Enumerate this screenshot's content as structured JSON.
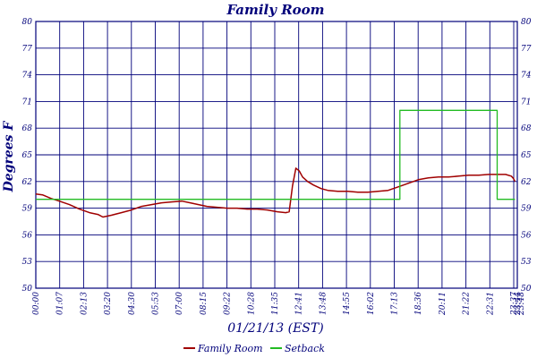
{
  "chart_data": {
    "type": "line",
    "title": "Family Room",
    "xlabel": "01/21/13 (EST)",
    "ylabel": "Degrees F",
    "ylim": [
      50,
      80
    ],
    "xlim": [
      "00:00",
      "23:55"
    ],
    "yticks": [
      50,
      53,
      56,
      59,
      62,
      65,
      68,
      71,
      74,
      77,
      80
    ],
    "xticks": [
      "00:00",
      "01:07",
      "02:13",
      "03:20",
      "04:30",
      "05:53",
      "07:00",
      "08:15",
      "09:22",
      "10:28",
      "11:35",
      "12:41",
      "13:48",
      "14:55",
      "16:02",
      "17:13",
      "18:36",
      "20:11",
      "21:22",
      "22:31",
      "23:37",
      "23:44",
      "23:48"
    ],
    "grid": true,
    "legend_position": "bottom",
    "colors": {
      "axis": "#00007a",
      "grid": "#00007a",
      "family_room": "#a00000",
      "setback": "#22bb22"
    },
    "series": [
      {
        "name": "Family Room",
        "x": [
          "00:00",
          "00:20",
          "00:45",
          "01:10",
          "01:40",
          "02:10",
          "02:40",
          "03:05",
          "03:20",
          "03:45",
          "04:15",
          "04:45",
          "05:15",
          "05:45",
          "06:15",
          "06:45",
          "07:15",
          "07:40",
          "08:05",
          "08:30",
          "09:00",
          "09:30",
          "10:00",
          "10:30",
          "11:00",
          "11:30",
          "12:00",
          "12:25",
          "12:35",
          "12:45",
          "12:55",
          "13:05",
          "13:15",
          "13:30",
          "13:48",
          "14:10",
          "14:30",
          "15:00",
          "15:30",
          "16:00",
          "16:30",
          "17:00",
          "17:30",
          "18:00",
          "18:30",
          "19:00",
          "19:30",
          "20:00",
          "20:30",
          "21:00",
          "21:30",
          "22:00",
          "22:30",
          "23:00",
          "23:20",
          "23:37",
          "23:44",
          "23:48"
        ],
        "values": [
          60.6,
          60.5,
          60.1,
          59.8,
          59.4,
          58.9,
          58.5,
          58.3,
          58.0,
          58.2,
          58.5,
          58.8,
          59.2,
          59.4,
          59.6,
          59.7,
          59.8,
          59.6,
          59.4,
          59.2,
          59.1,
          59.0,
          59.0,
          58.9,
          58.9,
          58.8,
          58.6,
          58.5,
          58.6,
          61.5,
          63.5,
          63.2,
          62.5,
          62.0,
          61.6,
          61.2,
          61.0,
          60.9,
          60.9,
          60.8,
          60.8,
          60.9,
          61.0,
          61.4,
          61.8,
          62.2,
          62.4,
          62.5,
          62.5,
          62.6,
          62.7,
          62.7,
          62.8,
          62.8,
          62.8,
          62.6,
          62.3,
          62.0
        ]
      },
      {
        "name": "Setback",
        "x": [
          "00:00",
          "18:05",
          "18:05",
          "22:55",
          "22:55",
          "23:48"
        ],
        "values": [
          60.0,
          60.0,
          70.0,
          70.0,
          60.0,
          60.0
        ]
      }
    ]
  }
}
